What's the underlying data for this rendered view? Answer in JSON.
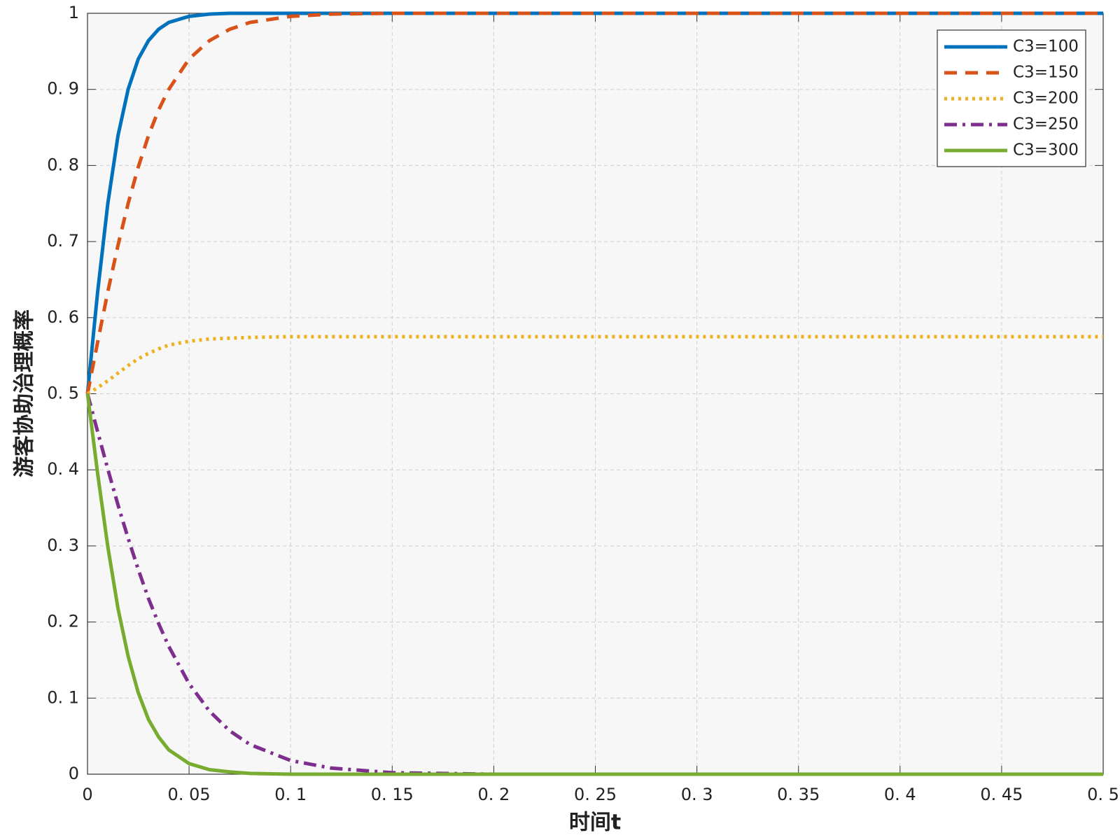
{
  "chart_data": {
    "type": "line",
    "xlabel": "时间t",
    "ylabel": "游客协助治理概率",
    "x": [
      0,
      0.005,
      0.01,
      0.015,
      0.02,
      0.025,
      0.03,
      0.035,
      0.04,
      0.05,
      0.06,
      0.07,
      0.08,
      0.1,
      0.12,
      0.15,
      0.2,
      0.3,
      0.4,
      0.5
    ],
    "series": [
      {
        "name": "C3=100",
        "color": "#0072BD",
        "line_style": "solid",
        "values": [
          0.5,
          0.634,
          0.75,
          0.839,
          0.9,
          0.94,
          0.964,
          0.979,
          0.988,
          0.996,
          0.999,
          1,
          1,
          1,
          1,
          1,
          1,
          1,
          1,
          1
        ]
      },
      {
        "name": "C3=150",
        "color": "#D95319",
        "line_style": "dashed",
        "values": [
          0.5,
          0.568,
          0.634,
          0.695,
          0.75,
          0.798,
          0.839,
          0.873,
          0.9,
          0.94,
          0.964,
          0.979,
          0.988,
          0.996,
          0.999,
          1,
          1,
          1,
          1,
          1
        ]
      },
      {
        "name": "C3=200",
        "color": "#EDB120",
        "line_style": "dotted",
        "values": [
          0.5,
          0.508,
          0.517,
          0.527,
          0.537,
          0.546,
          0.553,
          0.559,
          0.564,
          0.569,
          0.572,
          0.573,
          0.574,
          0.575,
          0.575,
          0.575,
          0.575,
          0.575,
          0.575,
          0.575
        ]
      },
      {
        "name": "C3=250",
        "color": "#7E2F8E",
        "line_style": "dashdot",
        "values": [
          0.5,
          0.45,
          0.401,
          0.354,
          0.31,
          0.269,
          0.231,
          0.198,
          0.168,
          0.119,
          0.083,
          0.057,
          0.039,
          0.018,
          0.008,
          0.002,
          0,
          0,
          0,
          0
        ]
      },
      {
        "name": "C3=300",
        "color": "#77AC30",
        "line_style": "solid",
        "values": [
          0.5,
          0.395,
          0.299,
          0.218,
          0.155,
          0.107,
          0.072,
          0.049,
          0.032,
          0.014,
          0.006,
          0.003,
          0.001,
          0,
          0,
          0,
          0,
          0,
          0,
          0
        ]
      }
    ],
    "xlim": [
      0,
      0.5
    ],
    "xticks": [
      0,
      {
        "value": 0.05,
        "label": "0. 05"
      },
      {
        "value": 0.1,
        "label": "0. 1"
      },
      {
        "value": 0.15,
        "label": "0. 15"
      },
      {
        "value": 0.2,
        "label": "0. 2"
      },
      {
        "value": 0.25,
        "label": "0. 25"
      },
      {
        "value": 0.3,
        "label": "0. 3"
      },
      {
        "value": 0.35,
        "label": "0. 35"
      },
      {
        "value": 0.4,
        "label": "0. 4"
      },
      {
        "value": 0.45,
        "label": "0. 45"
      },
      {
        "value": 0.5,
        "label": "0. 5"
      }
    ],
    "ylim": [
      0,
      1
    ],
    "yticks": [
      0,
      {
        "value": 0.1,
        "label": "0. 1"
      },
      {
        "value": 0.2,
        "label": "0. 2"
      },
      {
        "value": 0.3,
        "label": "0. 3"
      },
      {
        "value": 0.4,
        "label": "0. 4"
      },
      {
        "value": 0.5,
        "label": "0. 5"
      },
      {
        "value": 0.6,
        "label": "0. 6"
      },
      {
        "value": 0.7,
        "label": "0. 7"
      },
      {
        "value": 0.8,
        "label": "0. 8"
      },
      {
        "value": 0.9,
        "label": "0. 9"
      },
      1
    ],
    "grid": true,
    "legend_position": "upper right"
  }
}
